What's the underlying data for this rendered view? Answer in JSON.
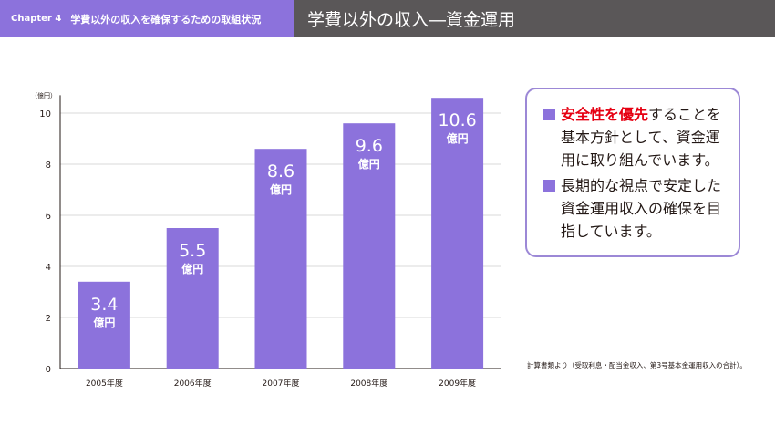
{
  "header": {
    "chapter": "Chapter 4",
    "section": "学費以外の収入を確保するための取組状況",
    "title": "学費以外の収入―資金運用"
  },
  "chart_data": {
    "type": "bar",
    "unit_label": "（億円）",
    "categories": [
      "2005年度",
      "2006年度",
      "2007年度",
      "2008年度",
      "2009年度"
    ],
    "values": [
      3.4,
      5.5,
      8.6,
      9.6,
      10.6
    ],
    "value_labels": [
      "3.4",
      "5.5",
      "8.6",
      "9.6",
      "10.6"
    ],
    "value_unit": "億円",
    "ylim": [
      0,
      10.6
    ],
    "yticks": [
      0,
      2,
      4,
      6,
      8,
      10
    ],
    "grid": true,
    "bar_color": "#8c72dc"
  },
  "notes": {
    "item1_highlight": "安全性を優先",
    "item1_rest": "することを基本方針として、資金運用に取り組んでいます。",
    "item2": "長期的な視点で安定した資金運用収入の確保を目指しています。"
  },
  "footnote": "計算書類より（受取利息・配当金収入、第3号基本金運用収入の合計）。",
  "colors": {
    "accent": "#8c72dc",
    "header_dark": "#5a5758",
    "highlight": "#e60012",
    "border": "#9c88d6"
  }
}
